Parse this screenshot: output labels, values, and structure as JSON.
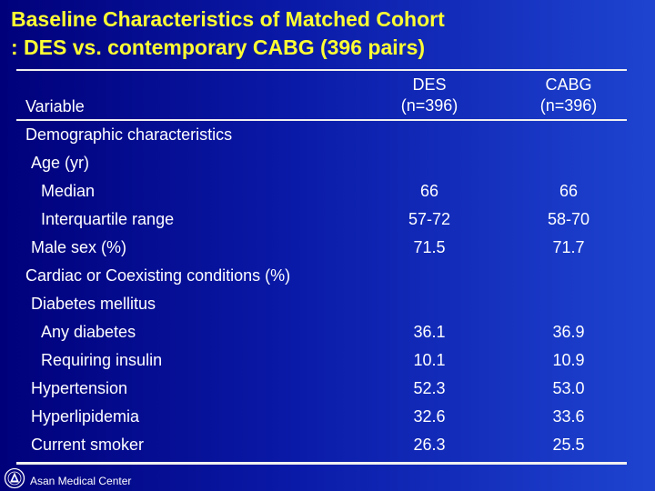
{
  "slide": {
    "title_line1": "Baseline Characteristics of Matched Cohort",
    "title_line2": ": DES vs. contemporary CABG (396 pairs)"
  },
  "colors": {
    "title": "#ffff33",
    "background_left": "#00007a",
    "background_right": "#1e44d0",
    "text": "#ffffff"
  },
  "table": {
    "variable_header": "Variable",
    "columns": [
      {
        "name": "DES",
        "n": "(n=396)"
      },
      {
        "name": "CABG",
        "n": "(n=396)"
      }
    ],
    "rows": [
      {
        "label": "Demographic characteristics",
        "des": "",
        "cabg": ""
      },
      {
        "label": "Age (yr)",
        "des": "",
        "cabg": ""
      },
      {
        "label": "Median",
        "des": "66",
        "cabg": "66"
      },
      {
        "label": "Interquartile range",
        "des": "57-72",
        "cabg": "58-70"
      },
      {
        "label": "Male sex (%)",
        "des": "71.5",
        "cabg": "71.7"
      },
      {
        "label": "Cardiac or Coexisting conditions (%)",
        "des": "",
        "cabg": ""
      },
      {
        "label": "Diabetes mellitus",
        "des": "",
        "cabg": ""
      },
      {
        "label": "Any diabetes",
        "des": "36.1",
        "cabg": "36.9"
      },
      {
        "label": "Requiring insulin",
        "des": "10.1",
        "cabg": "10.9"
      },
      {
        "label": "Hypertension",
        "des": "52.3",
        "cabg": "53.0"
      },
      {
        "label": "Hyperlipidemia",
        "des": "32.6",
        "cabg": "33.6"
      },
      {
        "label": "Current smoker",
        "des": "26.3",
        "cabg": "25.5"
      }
    ]
  },
  "footer": {
    "logo_icon": "asan-medical-center-logo-icon",
    "text": "Asan Medical Center"
  }
}
